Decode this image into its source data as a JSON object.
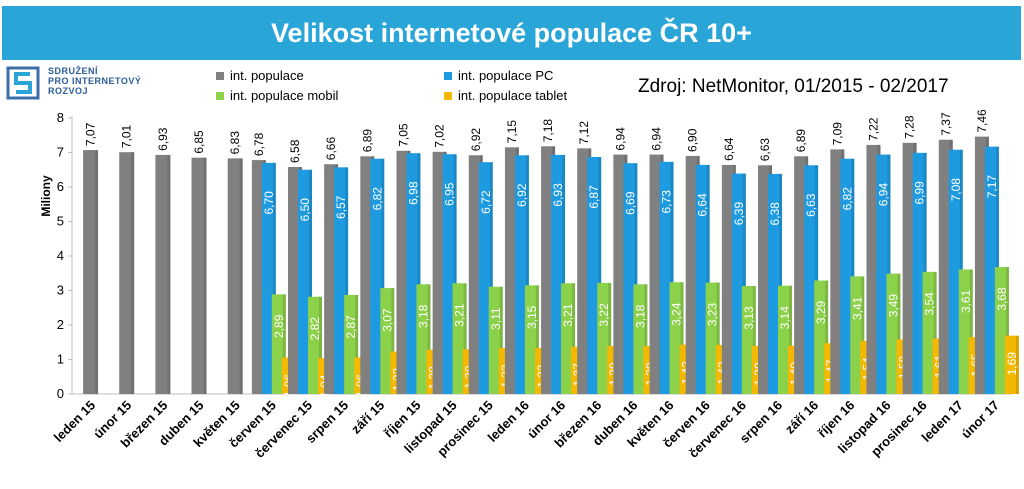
{
  "title": "Velikost internetové populace ČR 10+",
  "logo": {
    "lines": [
      "SDRUŽENÍ",
      "PRO INTERNETOVÝ",
      "ROZVOJ"
    ],
    "icon": "spir-logo-icon"
  },
  "source": "Zdroj: NetMonitor, 01/2015 - 02/2017",
  "colors": {
    "title_bg": "#2aa5d8",
    "populace": "#808080",
    "pc": "#1e9be0",
    "mobil": "#8cd14a",
    "tablet": "#f5b800"
  },
  "chart_data": {
    "type": "bar",
    "title": "Velikost internetové populace ČR 10+",
    "ylabel": "Miliony",
    "xlabel": "",
    "ylim": [
      0,
      8
    ],
    "yticks": [
      "0",
      "1",
      "2",
      "3",
      "4",
      "5",
      "6",
      "7",
      "8"
    ],
    "grid": false,
    "legend_position": "top",
    "categories": [
      "leden 15",
      "únor 15",
      "březen 15",
      "duben 15",
      "květen 15",
      "červen 15",
      "červenec 15",
      "srpen 15",
      "září 15",
      "říjen 15",
      "listopad 15",
      "prosinec 15",
      "leden 16",
      "únor 16",
      "březen 16",
      "duben 16",
      "květen 16",
      "červen 16",
      "červenec 16",
      "srpen 16",
      "září 16",
      "říjen 16",
      "listopad 16",
      "prosinec 16",
      "leden 17",
      "únor 17"
    ],
    "series": [
      {
        "name": "int. populace",
        "color": "#808080",
        "values": [
          7.07,
          7.01,
          6.93,
          6.85,
          6.83,
          6.78,
          6.58,
          6.66,
          6.89,
          7.05,
          7.02,
          6.92,
          7.15,
          7.18,
          7.12,
          6.94,
          6.94,
          6.9,
          6.64,
          6.63,
          6.89,
          7.09,
          7.22,
          7.28,
          7.37,
          7.46
        ],
        "labels": [
          "7,07",
          "7,01",
          "6,93",
          "6,85",
          "6,83",
          "6,78",
          "6,58",
          "6,66",
          "6,89",
          "7,05",
          "7,02",
          "6,92",
          "7,15",
          "7,18",
          "7,12",
          "6,94",
          "6,94",
          "6,90",
          "6,64",
          "6,63",
          "6,89",
          "7,09",
          "7,22",
          "7,28",
          "7,37",
          "7,46"
        ]
      },
      {
        "name": "int. populace PC",
        "color": "#1e9be0",
        "values": [
          null,
          null,
          null,
          null,
          null,
          6.7,
          6.5,
          6.57,
          6.82,
          6.98,
          6.95,
          6.72,
          6.92,
          6.93,
          6.87,
          6.69,
          6.73,
          6.64,
          6.39,
          6.38,
          6.63,
          6.82,
          6.94,
          6.99,
          7.08,
          7.17
        ],
        "labels": [
          null,
          null,
          null,
          null,
          null,
          "6,70",
          "6,50",
          "6,57",
          "6,82",
          "6,98",
          "6,95",
          "6,72",
          "6,92",
          "6,93",
          "6,87",
          "6,69",
          "6,73",
          "6,64",
          "6,39",
          "6,38",
          "6,63",
          "6,82",
          "6,94",
          "6,99",
          "7,08",
          "7,17"
        ]
      },
      {
        "name": "int. populace mobil",
        "color": "#8cd14a",
        "values": [
          null,
          null,
          null,
          null,
          null,
          2.89,
          2.82,
          2.87,
          3.07,
          3.18,
          3.21,
          3.11,
          3.15,
          3.21,
          3.22,
          3.18,
          3.24,
          3.23,
          3.13,
          3.14,
          3.29,
          3.41,
          3.49,
          3.54,
          3.61,
          3.68
        ],
        "labels": [
          null,
          null,
          null,
          null,
          null,
          "2,89",
          "2,82",
          "2,87",
          "3,07",
          "3,18",
          "3,21",
          "3,11",
          "3,15",
          "3,21",
          "3,22",
          "3,18",
          "3,24",
          "3,23",
          "3,13",
          "3,14",
          "3,29",
          "3,41",
          "3,49",
          "3,54",
          "3,61",
          "3,68"
        ]
      },
      {
        "name": "int. populace tablet",
        "color": "#f5b800",
        "values": [
          null,
          null,
          null,
          null,
          null,
          1.06,
          1.04,
          1.06,
          1.23,
          1.28,
          1.3,
          1.33,
          1.33,
          1.37,
          1.39,
          1.39,
          1.43,
          1.42,
          1.39,
          1.4,
          1.47,
          1.54,
          1.58,
          1.61,
          1.65,
          1.69
        ],
        "labels": [
          null,
          null,
          null,
          null,
          null,
          "1,06",
          "1,04",
          "1,06",
          "1,23",
          "1,28",
          "1,30",
          "1,33",
          "1,33",
          "1,37",
          "1,39",
          "1,39",
          "1,43",
          "1,42",
          "1,39",
          "1,40",
          "1,47",
          "1,54",
          "1,58",
          "1,61",
          "1,65",
          "1,69"
        ]
      }
    ]
  }
}
